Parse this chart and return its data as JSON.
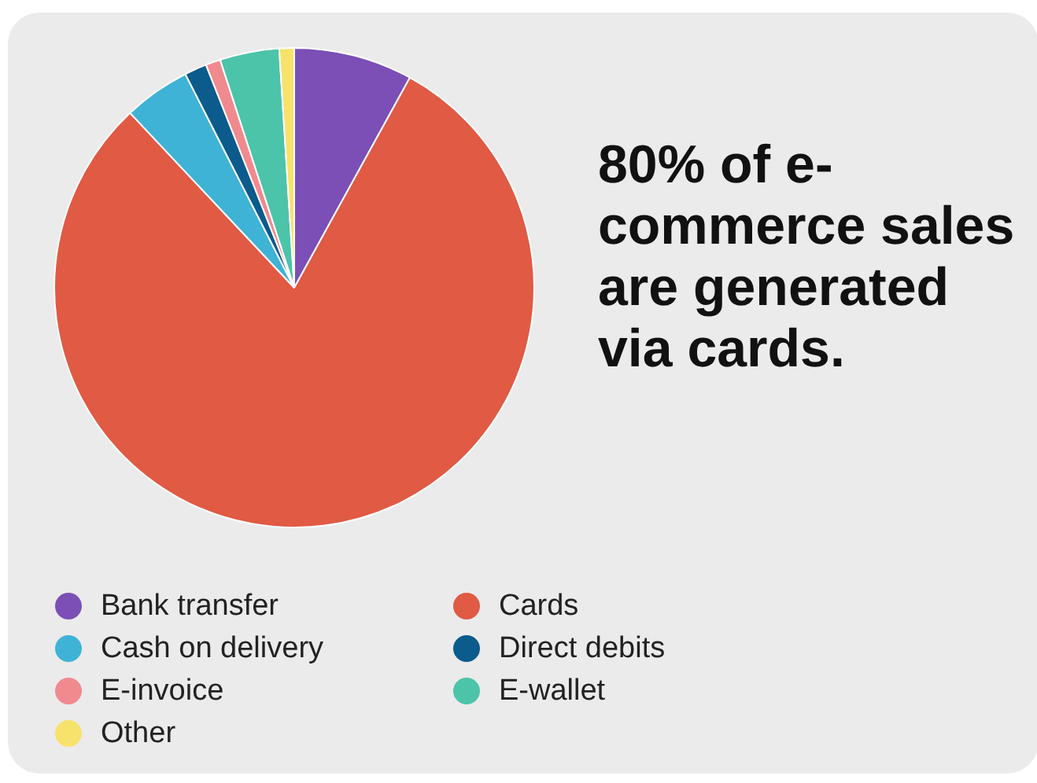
{
  "chart_data": {
    "type": "pie",
    "title": "80% of e-commerce sales are generated via cards.",
    "categories": [
      "Bank transfer",
      "Cards",
      "Cash on delivery",
      "Direct debits",
      "E-invoice",
      "E-wallet",
      "Other"
    ],
    "values": [
      8,
      80,
      4.5,
      1.5,
      1,
      4,
      1
    ],
    "colors": [
      "#7b4fb5",
      "#e05a44",
      "#3fb3d6",
      "#0b5b8c",
      "#f08a8f",
      "#4cc4a9",
      "#f7e26b"
    ],
    "legend": "bottom"
  }
}
